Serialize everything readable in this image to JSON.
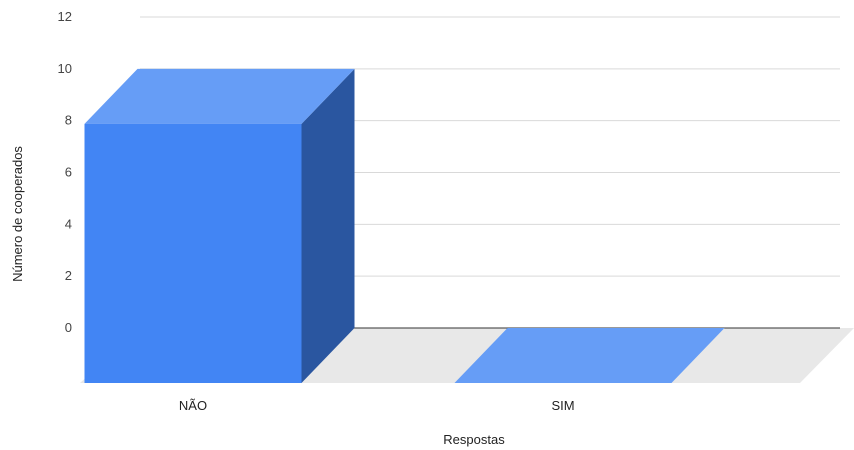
{
  "chart_data": {
    "type": "bar",
    "categories": [
      "NÃO",
      "SIM"
    ],
    "values": [
      10,
      0
    ],
    "xlabel": "Respostas",
    "ylabel": "Número de cooperados",
    "ylim": [
      0,
      12
    ],
    "yticks": [
      0,
      2,
      4,
      6,
      8,
      10,
      12
    ],
    "grid": true,
    "style": "3d",
    "colors": {
      "front": "#4285f4",
      "top": "#669df6",
      "side": "#2a56a0",
      "floor": "#e8e8e8",
      "grid": "#d9d9d9",
      "axis": "#333333"
    }
  }
}
